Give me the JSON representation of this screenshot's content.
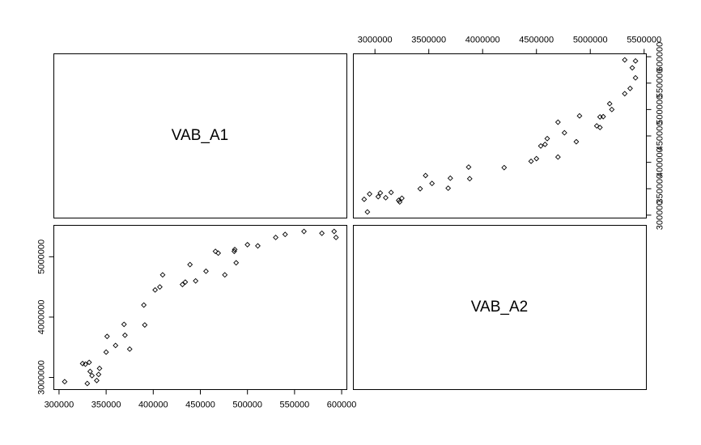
{
  "chart_data": {
    "type": "scatter",
    "variables": [
      "VAB_A1",
      "VAB_A2"
    ],
    "grid": false,
    "legend": "none",
    "point_marker": "open-diamond",
    "point_color": "#000000",
    "axes": {
      "VAB_A1": {
        "range": [
          300000,
          600000
        ],
        "ticks": [
          300000,
          350000,
          400000,
          450000,
          500000,
          550000,
          600000
        ],
        "tick_labels": [
          "300000",
          "350000",
          "400000",
          "450000",
          "500000",
          "550000",
          "600000"
        ]
      },
      "VAB_A2": {
        "range": [
          3000000,
          5500000
        ],
        "ticks": [
          3000000,
          3500000,
          4000000,
          4500000,
          5000000,
          5500000
        ],
        "tick_labels": [
          "3000000",
          "3500000",
          "4000000",
          "4500000",
          "5000000",
          "5500000"
        ],
        "left_axis_ticks": [
          3000000,
          4000000,
          5000000
        ],
        "left_axis_tick_labels": [
          "3000000",
          "4000000",
          "5000000"
        ]
      }
    },
    "points": [
      {
        "VAB_A1": 306000,
        "VAB_A2": 2930000
      },
      {
        "VAB_A1": 325000,
        "VAB_A2": 3230000
      },
      {
        "VAB_A1": 328000,
        "VAB_A2": 3220000
      },
      {
        "VAB_A1": 330000,
        "VAB_A2": 2900000
      },
      {
        "VAB_A1": 332000,
        "VAB_A2": 3250000
      },
      {
        "VAB_A1": 333000,
        "VAB_A2": 3100000
      },
      {
        "VAB_A1": 335000,
        "VAB_A2": 3030000
      },
      {
        "VAB_A1": 340000,
        "VAB_A2": 2950000
      },
      {
        "VAB_A1": 342000,
        "VAB_A2": 3050000
      },
      {
        "VAB_A1": 343000,
        "VAB_A2": 3150000
      },
      {
        "VAB_A1": 350000,
        "VAB_A2": 3420000
      },
      {
        "VAB_A1": 351000,
        "VAB_A2": 3680000
      },
      {
        "VAB_A1": 360000,
        "VAB_A2": 3530000
      },
      {
        "VAB_A1": 369000,
        "VAB_A2": 3880000
      },
      {
        "VAB_A1": 370000,
        "VAB_A2": 3700000
      },
      {
        "VAB_A1": 375000,
        "VAB_A2": 3470000
      },
      {
        "VAB_A1": 390000,
        "VAB_A2": 4200000
      },
      {
        "VAB_A1": 391000,
        "VAB_A2": 3870000
      },
      {
        "VAB_A1": 402000,
        "VAB_A2": 4450000
      },
      {
        "VAB_A1": 407000,
        "VAB_A2": 4500000
      },
      {
        "VAB_A1": 410000,
        "VAB_A2": 4700000
      },
      {
        "VAB_A1": 431000,
        "VAB_A2": 4540000
      },
      {
        "VAB_A1": 434000,
        "VAB_A2": 4580000
      },
      {
        "VAB_A1": 439000,
        "VAB_A2": 4870000
      },
      {
        "VAB_A1": 445000,
        "VAB_A2": 4600000
      },
      {
        "VAB_A1": 456000,
        "VAB_A2": 4760000
      },
      {
        "VAB_A1": 466000,
        "VAB_A2": 5090000
      },
      {
        "VAB_A1": 469000,
        "VAB_A2": 5060000
      },
      {
        "VAB_A1": 476000,
        "VAB_A2": 4700000
      },
      {
        "VAB_A1": 486000,
        "VAB_A2": 5090000
      },
      {
        "VAB_A1": 486500,
        "VAB_A2": 5120000
      },
      {
        "VAB_A1": 488000,
        "VAB_A2": 4900000
      },
      {
        "VAB_A1": 500000,
        "VAB_A2": 5200000
      },
      {
        "VAB_A1": 511000,
        "VAB_A2": 5180000
      },
      {
        "VAB_A1": 530000,
        "VAB_A2": 5320000
      },
      {
        "VAB_A1": 540000,
        "VAB_A2": 5370000
      },
      {
        "VAB_A1": 560000,
        "VAB_A2": 5420000
      },
      {
        "VAB_A1": 579000,
        "VAB_A2": 5390000
      },
      {
        "VAB_A1": 592000,
        "VAB_A2": 5420000
      },
      {
        "VAB_A1": 594000,
        "VAB_A2": 5320000
      }
    ]
  }
}
